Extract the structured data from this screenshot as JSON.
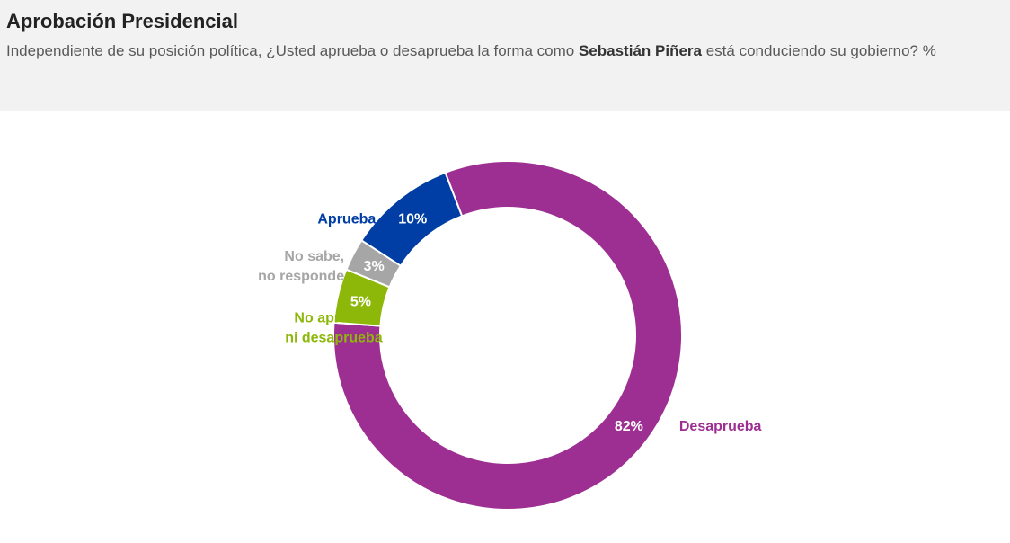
{
  "header": {
    "title": "Aprobación Presidencial",
    "subtitle_before": "Independiente de su posición política, ¿Usted aprueba o desaprueba la forma como ",
    "subtitle_bold": "Sebastián Piñera",
    "subtitle_after": " está conduciendo su gobierno? %"
  },
  "chart_data": {
    "type": "pie",
    "variant": "donut",
    "slices": [
      {
        "name": "Desaprueba",
        "label_lines": [
          "Desaprueba"
        ],
        "value": 82,
        "display": "82%",
        "color": "#9E2F92",
        "label_color": "#9E2F92"
      },
      {
        "name": "No aprueba ni desaprueba",
        "label_lines": [
          "No aprueba",
          "ni desaprueba"
        ],
        "value": 5,
        "display": "5%",
        "color": "#8DB80A",
        "label_color": "#8DB80A"
      },
      {
        "name": "No sabe, no responde",
        "label_lines": [
          "No sabe,",
          "no responde"
        ],
        "value": 3,
        "display": "3%",
        "color": "#A6A6A6",
        "label_color": "#A6A6A6"
      },
      {
        "name": "Aprueba",
        "label_lines": [
          "Aprueba"
        ],
        "value": 10,
        "display": "10%",
        "color": "#003DA5",
        "label_color": "#003DA5"
      }
    ]
  }
}
